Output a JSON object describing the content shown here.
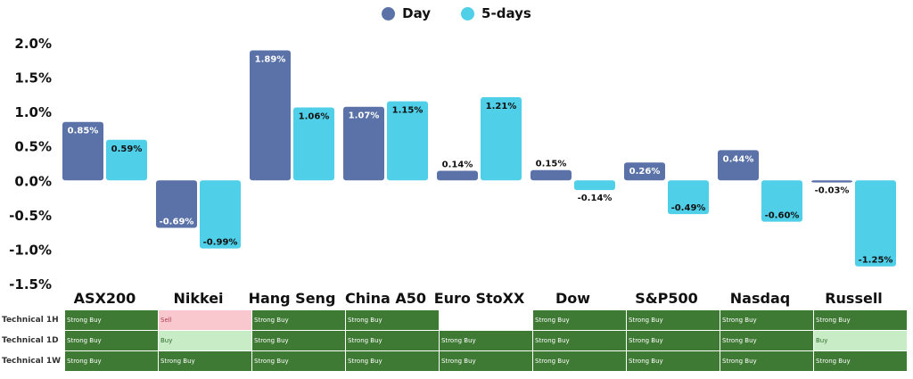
{
  "colors": {
    "day": "#5a72a8",
    "five_days": "#4fcfe8",
    "strong_buy": "#3f7a34",
    "buy": "#c8ecc6",
    "sell": "#f9c8cf"
  },
  "legend": [
    {
      "label": "Day",
      "color": "#5a72a8"
    },
    {
      "label": "5-days",
      "color": "#4fcfe8"
    }
  ],
  "chart_data": {
    "type": "bar",
    "categories": [
      "ASX200",
      "Nikkei",
      "Hang Seng",
      "China A50",
      "Euro StoXX",
      "Dow",
      "S&P500",
      "Nasdaq",
      "Russell"
    ],
    "series": [
      {
        "name": "Day",
        "values": [
          0.85,
          -0.69,
          1.89,
          1.07,
          0.14,
          0.15,
          0.26,
          0.44,
          -0.03
        ],
        "labels": [
          "0.85%",
          "-0.69%",
          "1.89%",
          "1.07%",
          "0.14%",
          "0.15%",
          "0.26%",
          "0.44%",
          "-0.03%"
        ]
      },
      {
        "name": "5-days",
        "values": [
          0.59,
          -0.99,
          1.06,
          1.15,
          1.21,
          -0.14,
          -0.49,
          -0.6,
          -1.25
        ],
        "labels": [
          "0.59%",
          "-0.99%",
          "1.06%",
          "1.15%",
          "1.21%",
          "-0.14%",
          "-0.49%",
          "-0.60%",
          "-1.25%"
        ]
      }
    ],
    "yticks": [
      "2.0%",
      "1.5%",
      "1.0%",
      "0.5%",
      "0.0%",
      "-0.5%",
      "-1.0%",
      "-1.5%"
    ],
    "ytick_values": [
      2.0,
      1.5,
      1.0,
      0.5,
      0.0,
      -0.5,
      -1.0,
      -1.5
    ],
    "ylim": [
      -1.5,
      2.0
    ],
    "legend_position": "top-center",
    "grid": false
  },
  "technical": {
    "rows": [
      {
        "label": "Technical 1H",
        "signals": [
          "Strong Buy",
          "Sell",
          "Strong Buy",
          "Strong Buy",
          "",
          "Strong Buy",
          "Strong Buy",
          "Strong Buy",
          "Strong Buy"
        ]
      },
      {
        "label": "Technical 1D",
        "signals": [
          "Strong Buy",
          "Buy",
          "Strong Buy",
          "Strong Buy",
          "Strong Buy",
          "Strong Buy",
          "Strong Buy",
          "Strong Buy",
          "Buy"
        ]
      },
      {
        "label": "Technical 1W",
        "signals": [
          "Strong Buy",
          "Strong Buy",
          "Strong Buy",
          "Strong Buy",
          "Strong Buy",
          "Strong Buy",
          "Strong Buy",
          "Strong Buy",
          "Strong Buy"
        ]
      }
    ]
  }
}
